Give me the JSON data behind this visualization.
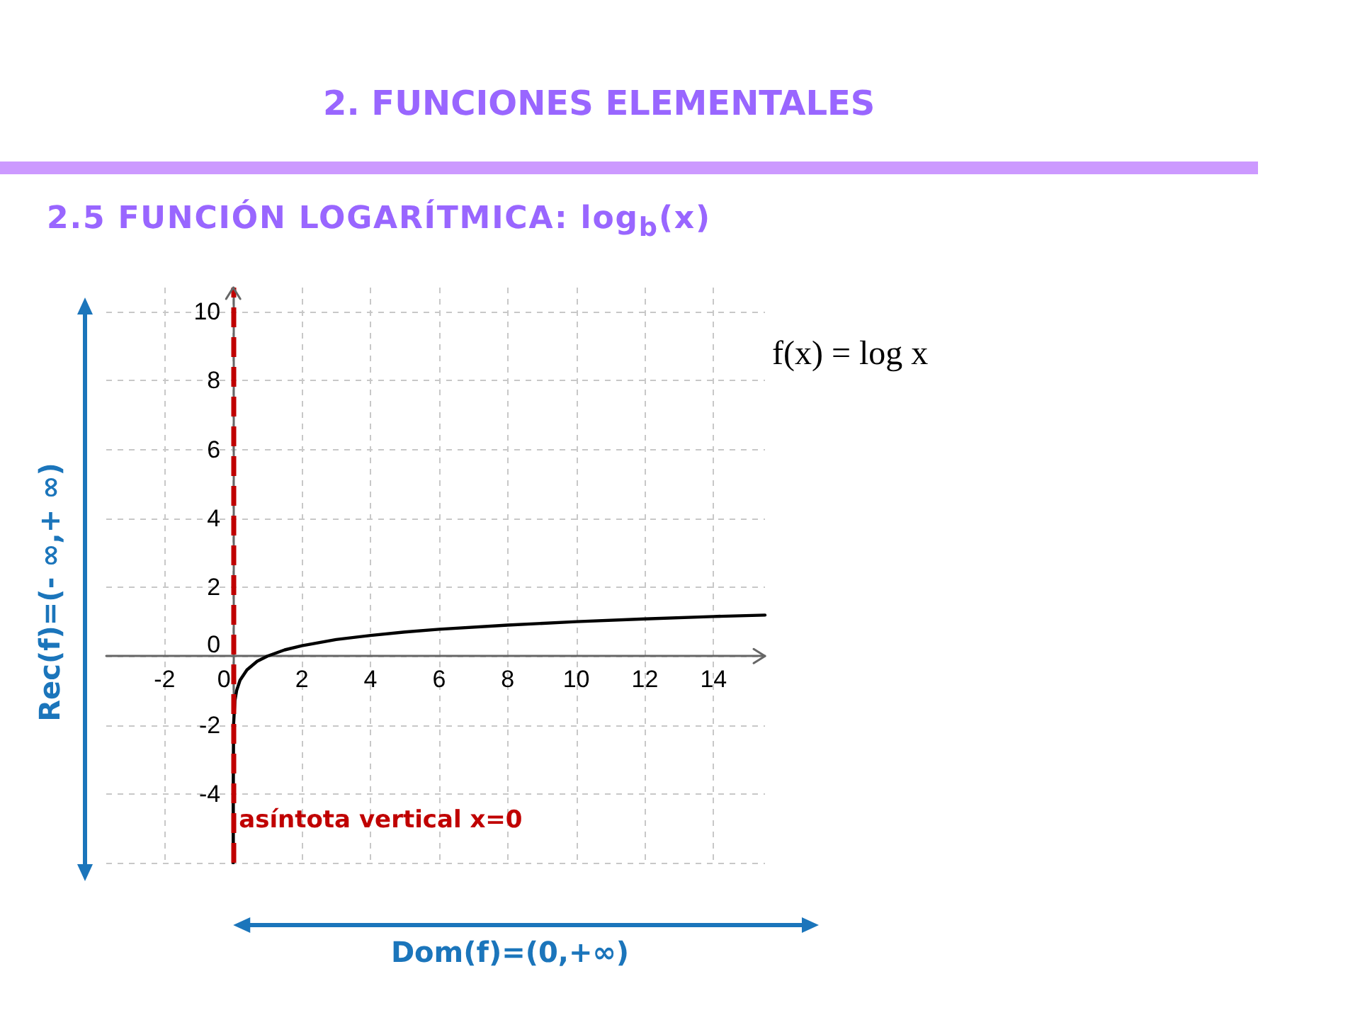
{
  "chart_data": {
    "type": "line",
    "title": "2. FUNCIONES ELEMENTALES",
    "subtitle": "2.5 FUNCIÓN LOGARÍTMICA: log$_{b}$(x)",
    "x": [
      1e-06,
      0.0001,
      0.01,
      0.05,
      0.1,
      0.2,
      0.4,
      0.7,
      1,
      1.5,
      2,
      3,
      4,
      5,
      6,
      8,
      10,
      12,
      14,
      15.5
    ],
    "values": [
      -6,
      -4,
      -2,
      -1.3,
      -1,
      -0.7,
      -0.4,
      -0.15,
      0,
      0.18,
      0.3,
      0.48,
      0.6,
      0.7,
      0.78,
      0.9,
      1,
      1.08,
      1.15,
      1.19
    ],
    "color": "#000000",
    "marker": "none",
    "line_style": "solid",
    "xlim": [
      -3.7,
      15.5
    ],
    "xticks": [
      -2,
      0,
      2,
      4,
      6,
      8,
      10,
      12,
      14
    ],
    "ylim": [
      -6,
      10.7
    ],
    "yticks": [
      {
        "value": -6,
        "label": null
      },
      -4,
      -2,
      0,
      2,
      4,
      6,
      8,
      10
    ],
    "grid": true,
    "ref_lines": [
      {
        "axis": "x",
        "value": 0,
        "label": "asíntota vertical x=0",
        "color": "#c00000",
        "line_style": "dashed"
      }
    ],
    "annotations": [
      "Rec(f)=(- ∞,+ ∞)",
      "Dom(f)=(0,+∞)",
      "f(x) = log x"
    ]
  }
}
